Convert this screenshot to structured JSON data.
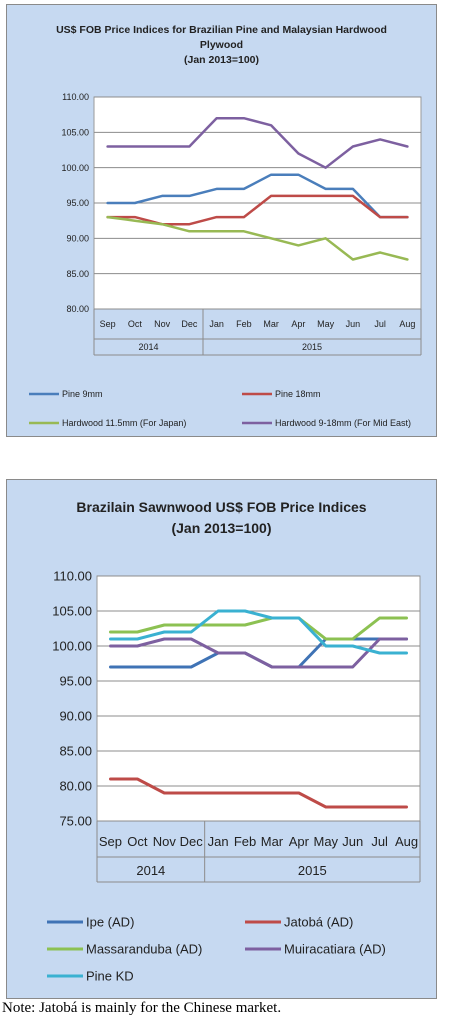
{
  "charts": [
    {
      "id": "c1",
      "title_line1": "US$ FOB Price Indices for Brazilian Pine and Malaysian Hardwood",
      "title_line2": "Plywood",
      "title_line3": "(Jan 2013=100)"
    },
    {
      "id": "c2",
      "title_line1": "Brazilain Sawnwood US$ FOB Price Indices",
      "title_line2": "(Jan 2013=100)"
    }
  ],
  "note": "Note: Jatobá is mainly for the Chinese market.",
  "chart_data": [
    {
      "type": "line",
      "title": "US$ FOB Price Indices for Brazilian Pine and Malaysian Hardwood Plywood (Jan 2013=100)",
      "categories": [
        "Sep",
        "Oct",
        "Nov",
        "Dec",
        "Jan",
        "Feb",
        "Mar",
        "Apr",
        "May",
        "Jun",
        "Jul",
        "Aug"
      ],
      "year_groups": [
        {
          "label": "2014",
          "span": 4
        },
        {
          "label": "2015",
          "span": 8
        }
      ],
      "ylim": [
        80,
        110
      ],
      "yticks": [
        80,
        85,
        90,
        95,
        100,
        105,
        110
      ],
      "ytick_labels": [
        "80.00",
        "85.00",
        "90.00",
        "95.00",
        "100.00",
        "105.00",
        "110.00"
      ],
      "grid": "horizontal",
      "legend": "bottom",
      "series": [
        {
          "name": "Pine 9mm",
          "color": "#4a7ebb",
          "values": [
            95,
            95,
            96,
            96,
            97,
            97,
            99,
            99,
            97,
            97,
            93,
            93
          ]
        },
        {
          "name": "Pine 18mm",
          "color": "#be4b48",
          "values": [
            93,
            93,
            92,
            92,
            93,
            93,
            96,
            96,
            96,
            96,
            93,
            93
          ]
        },
        {
          "name": "Hardwood 11.5mm (For Japan)",
          "color": "#98b954",
          "values": [
            93,
            92.5,
            92,
            91,
            91,
            91,
            90,
            89,
            90,
            87,
            88,
            87
          ]
        },
        {
          "name": "Hardwood 9-18mm (For Mid East)",
          "color": "#7d60a0",
          "values": [
            103,
            103,
            103,
            103,
            107,
            107,
            106,
            102,
            100,
            103,
            104,
            103
          ]
        }
      ]
    },
    {
      "type": "line",
      "title": "Brazilain Sawnwood US$ FOB Price Indices (Jan 2013=100)",
      "categories": [
        "Sep",
        "Oct",
        "Nov",
        "Dec",
        "Jan",
        "Feb",
        "Mar",
        "Apr",
        "May",
        "Jun",
        "Jul",
        "Aug"
      ],
      "year_groups": [
        {
          "label": "2014",
          "span": 4
        },
        {
          "label": "2015",
          "span": 8
        }
      ],
      "ylim": [
        75,
        110
      ],
      "yticks": [
        75,
        80,
        85,
        90,
        95,
        100,
        105,
        110
      ],
      "ytick_labels": [
        "75.00",
        "80.00",
        "85.00",
        "90.00",
        "95.00",
        "100.00",
        "105.00",
        "110.00"
      ],
      "grid": "horizontal",
      "legend": "bottom",
      "series": [
        {
          "name": "Ipe (AD)",
          "color": "#3f73b5",
          "values": [
            97,
            97,
            97,
            97,
            99,
            99,
            97,
            97,
            101,
            101,
            101,
            101
          ]
        },
        {
          "name": "Jatobá (AD)",
          "color": "#be4b48",
          "values": [
            81,
            81,
            79,
            79,
            79,
            79,
            79,
            79,
            77,
            77,
            77,
            77
          ]
        },
        {
          "name": "Massaranduba (AD)",
          "color": "#8cc152",
          "values": [
            102,
            102,
            103,
            103,
            103,
            103,
            104,
            104,
            101,
            101,
            104,
            104
          ]
        },
        {
          "name": "Muiracatiara (AD)",
          "color": "#7d60a0",
          "values": [
            100,
            100,
            101,
            101,
            99,
            99,
            97,
            97,
            97,
            97,
            101,
            101
          ]
        },
        {
          "name": "Pine KD",
          "color": "#3ab1d1",
          "values": [
            101,
            101,
            102,
            102,
            105,
            105,
            104,
            104,
            100,
            100,
            99,
            99
          ]
        }
      ]
    }
  ]
}
